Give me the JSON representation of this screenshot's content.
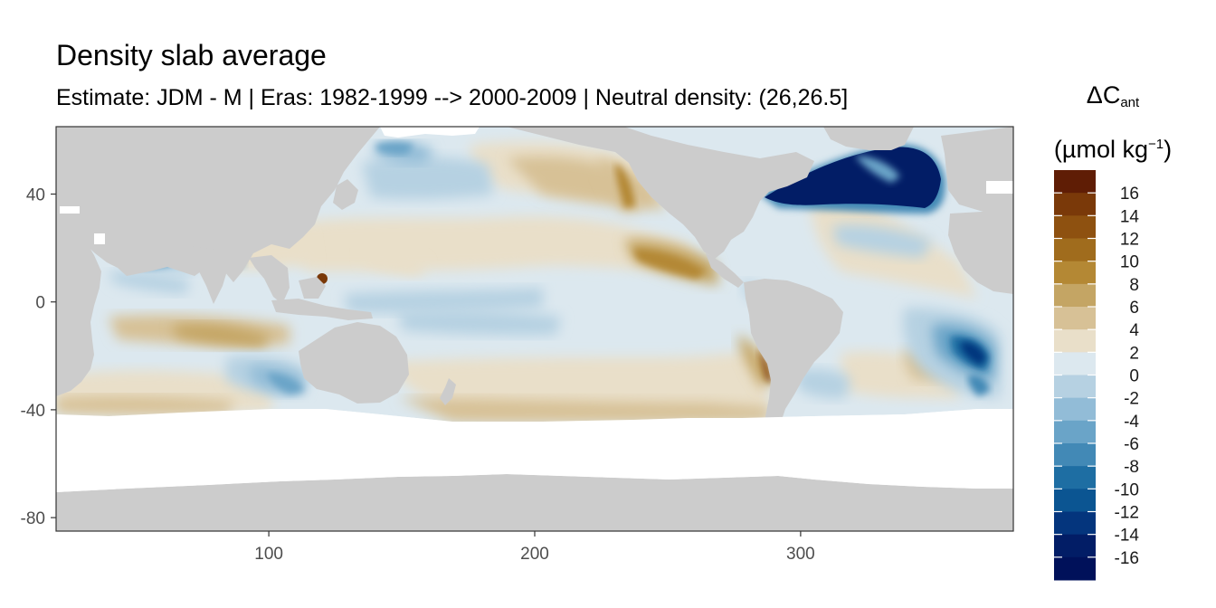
{
  "chart_data": {
    "type": "heatmap",
    "title": "Density slab average",
    "subtitle": "Estimate: JDM - M | Eras: 1982-1999 --> 2000-2009 | Neutral density: (26,26.5]",
    "legend": {
      "title_main": "ΔC",
      "title_sub": "ant",
      "unit_prefix": "(µmol kg",
      "unit_exp": "−1",
      "unit_suffix": ")",
      "placement": "right",
      "bins": [
        {
          "label": "16",
          "color": "#5f1d05"
        },
        {
          "label": "14",
          "color": "#7a3909"
        },
        {
          "label": "12",
          "color": "#8e5110"
        },
        {
          "label": "10",
          "color": "#a06c1d"
        },
        {
          "label": "8",
          "color": "#b48834"
        },
        {
          "label": "6",
          "color": "#c4a564"
        },
        {
          "label": "4",
          "color": "#d7c196"
        },
        {
          "label": "2",
          "color": "#e9dfc9"
        },
        {
          "label": "0",
          "color": "#dce8ef"
        },
        {
          "label": "-2",
          "color": "#b6d1e2"
        },
        {
          "label": "-4",
          "color": "#92bcd7"
        },
        {
          "label": "-6",
          "color": "#6aa4c8"
        },
        {
          "label": "-8",
          "color": "#4289b6"
        },
        {
          "label": "-10",
          "color": "#1e6ea3"
        },
        {
          "label": "-12",
          "color": "#0b5592"
        },
        {
          "label": "-14",
          "color": "#04357d"
        },
        {
          "label": "-16",
          "color": "#021d66"
        },
        {
          "label": "",
          "color": "#00115a"
        }
      ]
    },
    "x_axis": {
      "ticks": [
        100,
        200,
        300
      ],
      "range": [
        20,
        380
      ],
      "label": ""
    },
    "y_axis": {
      "ticks": [
        40,
        0,
        -40,
        -80
      ],
      "range": [
        -85,
        65
      ],
      "label": ""
    },
    "grid": true,
    "land_color": "#cccccc",
    "no_data_color": "#ffffff"
  }
}
